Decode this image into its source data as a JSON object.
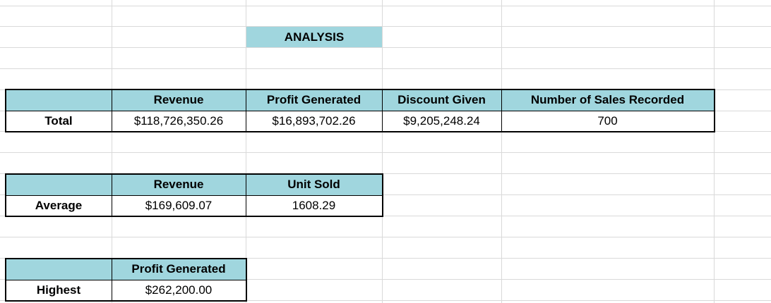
{
  "title": "ANALYSIS",
  "total_block": {
    "row_label": "Total",
    "headers": [
      "Revenue",
      "Profit Generated",
      "Discount Given",
      "Number of Sales Recorded"
    ],
    "values": [
      "$118,726,350.26",
      "$16,893,702.26",
      "$9,205,248.24",
      "700"
    ]
  },
  "average_block": {
    "row_label": "Average",
    "headers": [
      "Revenue",
      "Unit Sold"
    ],
    "values": [
      "$169,609.07",
      "1608.29"
    ]
  },
  "highest_block": {
    "row_label": "Highest",
    "headers": [
      "Profit Generated"
    ],
    "values": [
      "$262,200.00"
    ]
  },
  "colors": {
    "header_fill": "#a0d6de",
    "gridline": "#d9d9d9",
    "border": "#000000"
  }
}
